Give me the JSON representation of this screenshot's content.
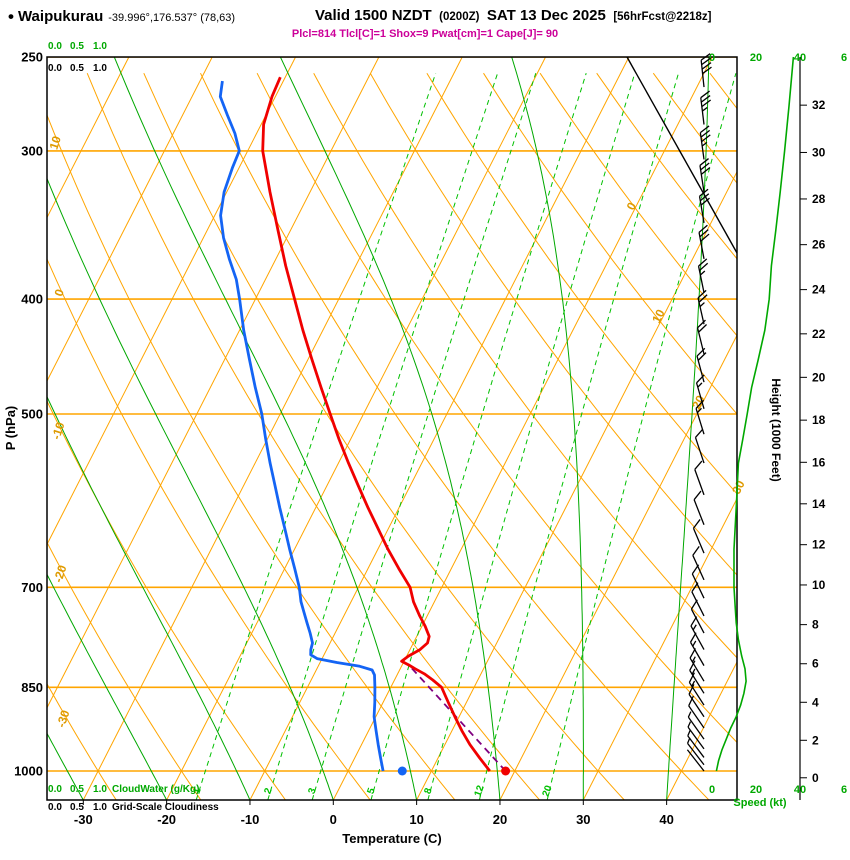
{
  "header": {
    "bullet": "•",
    "station": "Waipukurau",
    "coords": "-39.996°,176.537° (78,63)",
    "valid": "Valid 1500 NZDT",
    "valid_zulu": "(0200Z)",
    "valid_date": "SAT 13 Dec 2025",
    "fcst_tag": "[56hrFcst@2218z]",
    "indices_line": "Plcl=814 Tlcl[C]=1 Shox=9 Pwat[cm]=1 Cape[J]= 90"
  },
  "colors": {
    "isotherm": "#FFA500",
    "dry_adiabat": "#FFA500",
    "moist_adiabat": "#00A800",
    "mixing_ratio": "#00C000",
    "pressure_line": "#FFA500",
    "orange_label": "#DE9A00",
    "temp_curve": "#F00000",
    "dewp_curve": "#1464F4",
    "parcel": "#800080",
    "wind": "#000000",
    "speed_curve": "#00A800",
    "green_text": "#00A800",
    "magenta": "#CC0099",
    "frame": "#000000"
  },
  "chart_data": {
    "type": "line",
    "subtype": "skew-t-log-p-sounding",
    "title": "Waipukurau forecast sounding",
    "xlabel": "Temperature (C)",
    "ylabel_left": "P (hPa)",
    "ylabel_right": "Height (1000 Feet)",
    "speed_label": "Speed (kt)",
    "cloudwater_label": "CloudWater (g/Kg)",
    "cloudiness_label": "Grid-Scale Cloudiness",
    "pressure_ticks": [
      250,
      300,
      400,
      500,
      700,
      850,
      1000
    ],
    "temp_ticks": [
      -30,
      -20,
      -10,
      0,
      10,
      20,
      30,
      40
    ],
    "height_ticks": [
      0,
      2,
      4,
      6,
      8,
      10,
      12,
      14,
      16,
      18,
      20,
      22,
      24,
      26,
      28,
      30,
      32
    ],
    "speed_ticks": [
      "0",
      "20",
      "40",
      "6"
    ],
    "aux_scale": [
      "0.0",
      "0.5",
      "1.0"
    ],
    "isotherm_grid": {
      "start": -80,
      "end": 40,
      "step": 10
    },
    "dry_adiabat_grid": {
      "start": -40,
      "end": 130,
      "step": 10
    },
    "moist_adiabats_start": [
      -30,
      -20,
      -10,
      0,
      10,
      20,
      30,
      40
    ],
    "mixing_ratios": [
      1,
      2,
      3,
      5,
      8,
      12,
      20
    ],
    "dry_adiabat_label_anchors": [
      {
        "v": 10,
        "p": 296
      },
      {
        "v": 0,
        "p": 396
      },
      {
        "v": -10,
        "p": 518
      },
      {
        "v": -20,
        "p": 684
      },
      {
        "v": -30,
        "p": 905
      }
    ],
    "isotherm_label_anchors": [
      {
        "v": 0,
        "p": 335
      },
      {
        "v": 10,
        "p": 415
      },
      {
        "v": 20,
        "p": 490
      },
      {
        "v": 30,
        "p": 578
      }
    ],
    "temperature_profile": [
      [
        1000,
        17.0
      ],
      [
        975,
        15.0
      ],
      [
        950,
        13.0
      ],
      [
        925,
        11.2
      ],
      [
        900,
        9.5
      ],
      [
        875,
        7.8
      ],
      [
        850,
        6.1
      ],
      [
        838,
        4.6
      ],
      [
        828,
        3.2
      ],
      [
        820,
        1.8
      ],
      [
        814,
        0.8
      ],
      [
        808,
        -0.3
      ],
      [
        800,
        0.2
      ],
      [
        790,
        1.2
      ],
      [
        780,
        1.7
      ],
      [
        770,
        1.5
      ],
      [
        755,
        0.4
      ],
      [
        740,
        -0.9
      ],
      [
        720,
        -2.5
      ],
      [
        700,
        -3.8
      ],
      [
        675,
        -6.3
      ],
      [
        650,
        -8.8
      ],
      [
        625,
        -11.2
      ],
      [
        600,
        -13.7
      ],
      [
        575,
        -16.2
      ],
      [
        550,
        -18.8
      ],
      [
        525,
        -21.4
      ],
      [
        500,
        -24.0
      ],
      [
        475,
        -26.7
      ],
      [
        450,
        -29.5
      ],
      [
        425,
        -32.4
      ],
      [
        400,
        -35.3
      ],
      [
        375,
        -38.4
      ],
      [
        350,
        -41.5
      ],
      [
        325,
        -44.8
      ],
      [
        300,
        -48.2
      ],
      [
        285,
        -49.7
      ],
      [
        270,
        -50.4
      ],
      [
        260,
        -50.6
      ]
    ],
    "dewpoint_profile": [
      [
        1000,
        4.2
      ],
      [
        975,
        3.1
      ],
      [
        950,
        2.0
      ],
      [
        925,
        0.9
      ],
      [
        900,
        -0.2
      ],
      [
        875,
        -1.0
      ],
      [
        850,
        -1.9
      ],
      [
        840,
        -2.3
      ],
      [
        830,
        -2.7
      ],
      [
        822,
        -3.3
      ],
      [
        816,
        -5.0
      ],
      [
        810,
        -8.0
      ],
      [
        804,
        -10.6
      ],
      [
        798,
        -11.6
      ],
      [
        790,
        -11.9
      ],
      [
        780,
        -12.1
      ],
      [
        765,
        -13.0
      ],
      [
        750,
        -14.0
      ],
      [
        735,
        -15.0
      ],
      [
        720,
        -16.0
      ],
      [
        700,
        -17.1
      ],
      [
        675,
        -18.8
      ],
      [
        650,
        -20.6
      ],
      [
        625,
        -22.4
      ],
      [
        600,
        -24.3
      ],
      [
        575,
        -26.2
      ],
      [
        550,
        -28.2
      ],
      [
        525,
        -30.2
      ],
      [
        500,
        -32.2
      ],
      [
        475,
        -34.6
      ],
      [
        450,
        -37.0
      ],
      [
        425,
        -39.5
      ],
      [
        400,
        -41.9
      ],
      [
        385,
        -43.5
      ],
      [
        370,
        -45.6
      ],
      [
        355,
        -47.6
      ],
      [
        340,
        -49.3
      ],
      [
        325,
        -50.3
      ],
      [
        310,
        -50.8
      ],
      [
        300,
        -51.0
      ],
      [
        290,
        -52.6
      ],
      [
        280,
        -54.6
      ],
      [
        270,
        -56.6
      ],
      [
        262,
        -57.3
      ]
    ],
    "parcel_path": [
      [
        1000,
        18.9
      ],
      [
        814,
        0.8
      ]
    ],
    "surface_temp_point": [
      1000,
      18.9
    ],
    "surface_dewp_point": [
      1000,
      6.5
    ],
    "lcl_pressure": 814,
    "wind_barbs": [
      [
        265,
        40
      ],
      [
        285,
        37
      ],
      [
        305,
        34
      ],
      [
        325,
        32
      ],
      [
        345,
        30
      ],
      [
        370,
        28
      ],
      [
        395,
        26
      ],
      [
        420,
        24
      ],
      [
        445,
        21
      ],
      [
        470,
        18
      ],
      [
        495,
        16
      ],
      [
        520,
        14
      ],
      [
        550,
        12
      ],
      [
        585,
        11
      ],
      [
        620,
        10
      ],
      [
        655,
        10
      ],
      [
        690,
        10
      ],
      [
        715,
        10
      ],
      [
        740,
        11
      ],
      [
        765,
        12
      ],
      [
        790,
        13
      ],
      [
        815,
        14
      ],
      [
        840,
        15
      ],
      [
        860,
        14
      ],
      [
        880,
        13
      ],
      [
        900,
        11
      ],
      [
        920,
        9
      ],
      [
        940,
        7
      ],
      [
        958,
        5
      ],
      [
        974,
        4
      ],
      [
        988,
        3
      ],
      [
        1000,
        2
      ]
    ],
    "speed_profile": [
      [
        250,
        37
      ],
      [
        275,
        35
      ],
      [
        300,
        33
      ],
      [
        325,
        31
      ],
      [
        350,
        29
      ],
      [
        375,
        27
      ],
      [
        400,
        26
      ],
      [
        425,
        24
      ],
      [
        450,
        21
      ],
      [
        475,
        18
      ],
      [
        500,
        16
      ],
      [
        525,
        14
      ],
      [
        550,
        12
      ],
      [
        575,
        11.5
      ],
      [
        600,
        11
      ],
      [
        650,
        10
      ],
      [
        700,
        10
      ],
      [
        725,
        10.5
      ],
      [
        750,
        11
      ],
      [
        775,
        12
      ],
      [
        800,
        13.5
      ],
      [
        820,
        15
      ],
      [
        840,
        15.5
      ],
      [
        860,
        14.5
      ],
      [
        880,
        13
      ],
      [
        900,
        11
      ],
      [
        920,
        8.5
      ],
      [
        940,
        6.5
      ],
      [
        960,
        4.5
      ],
      [
        980,
        3
      ],
      [
        1000,
        2
      ]
    ]
  }
}
